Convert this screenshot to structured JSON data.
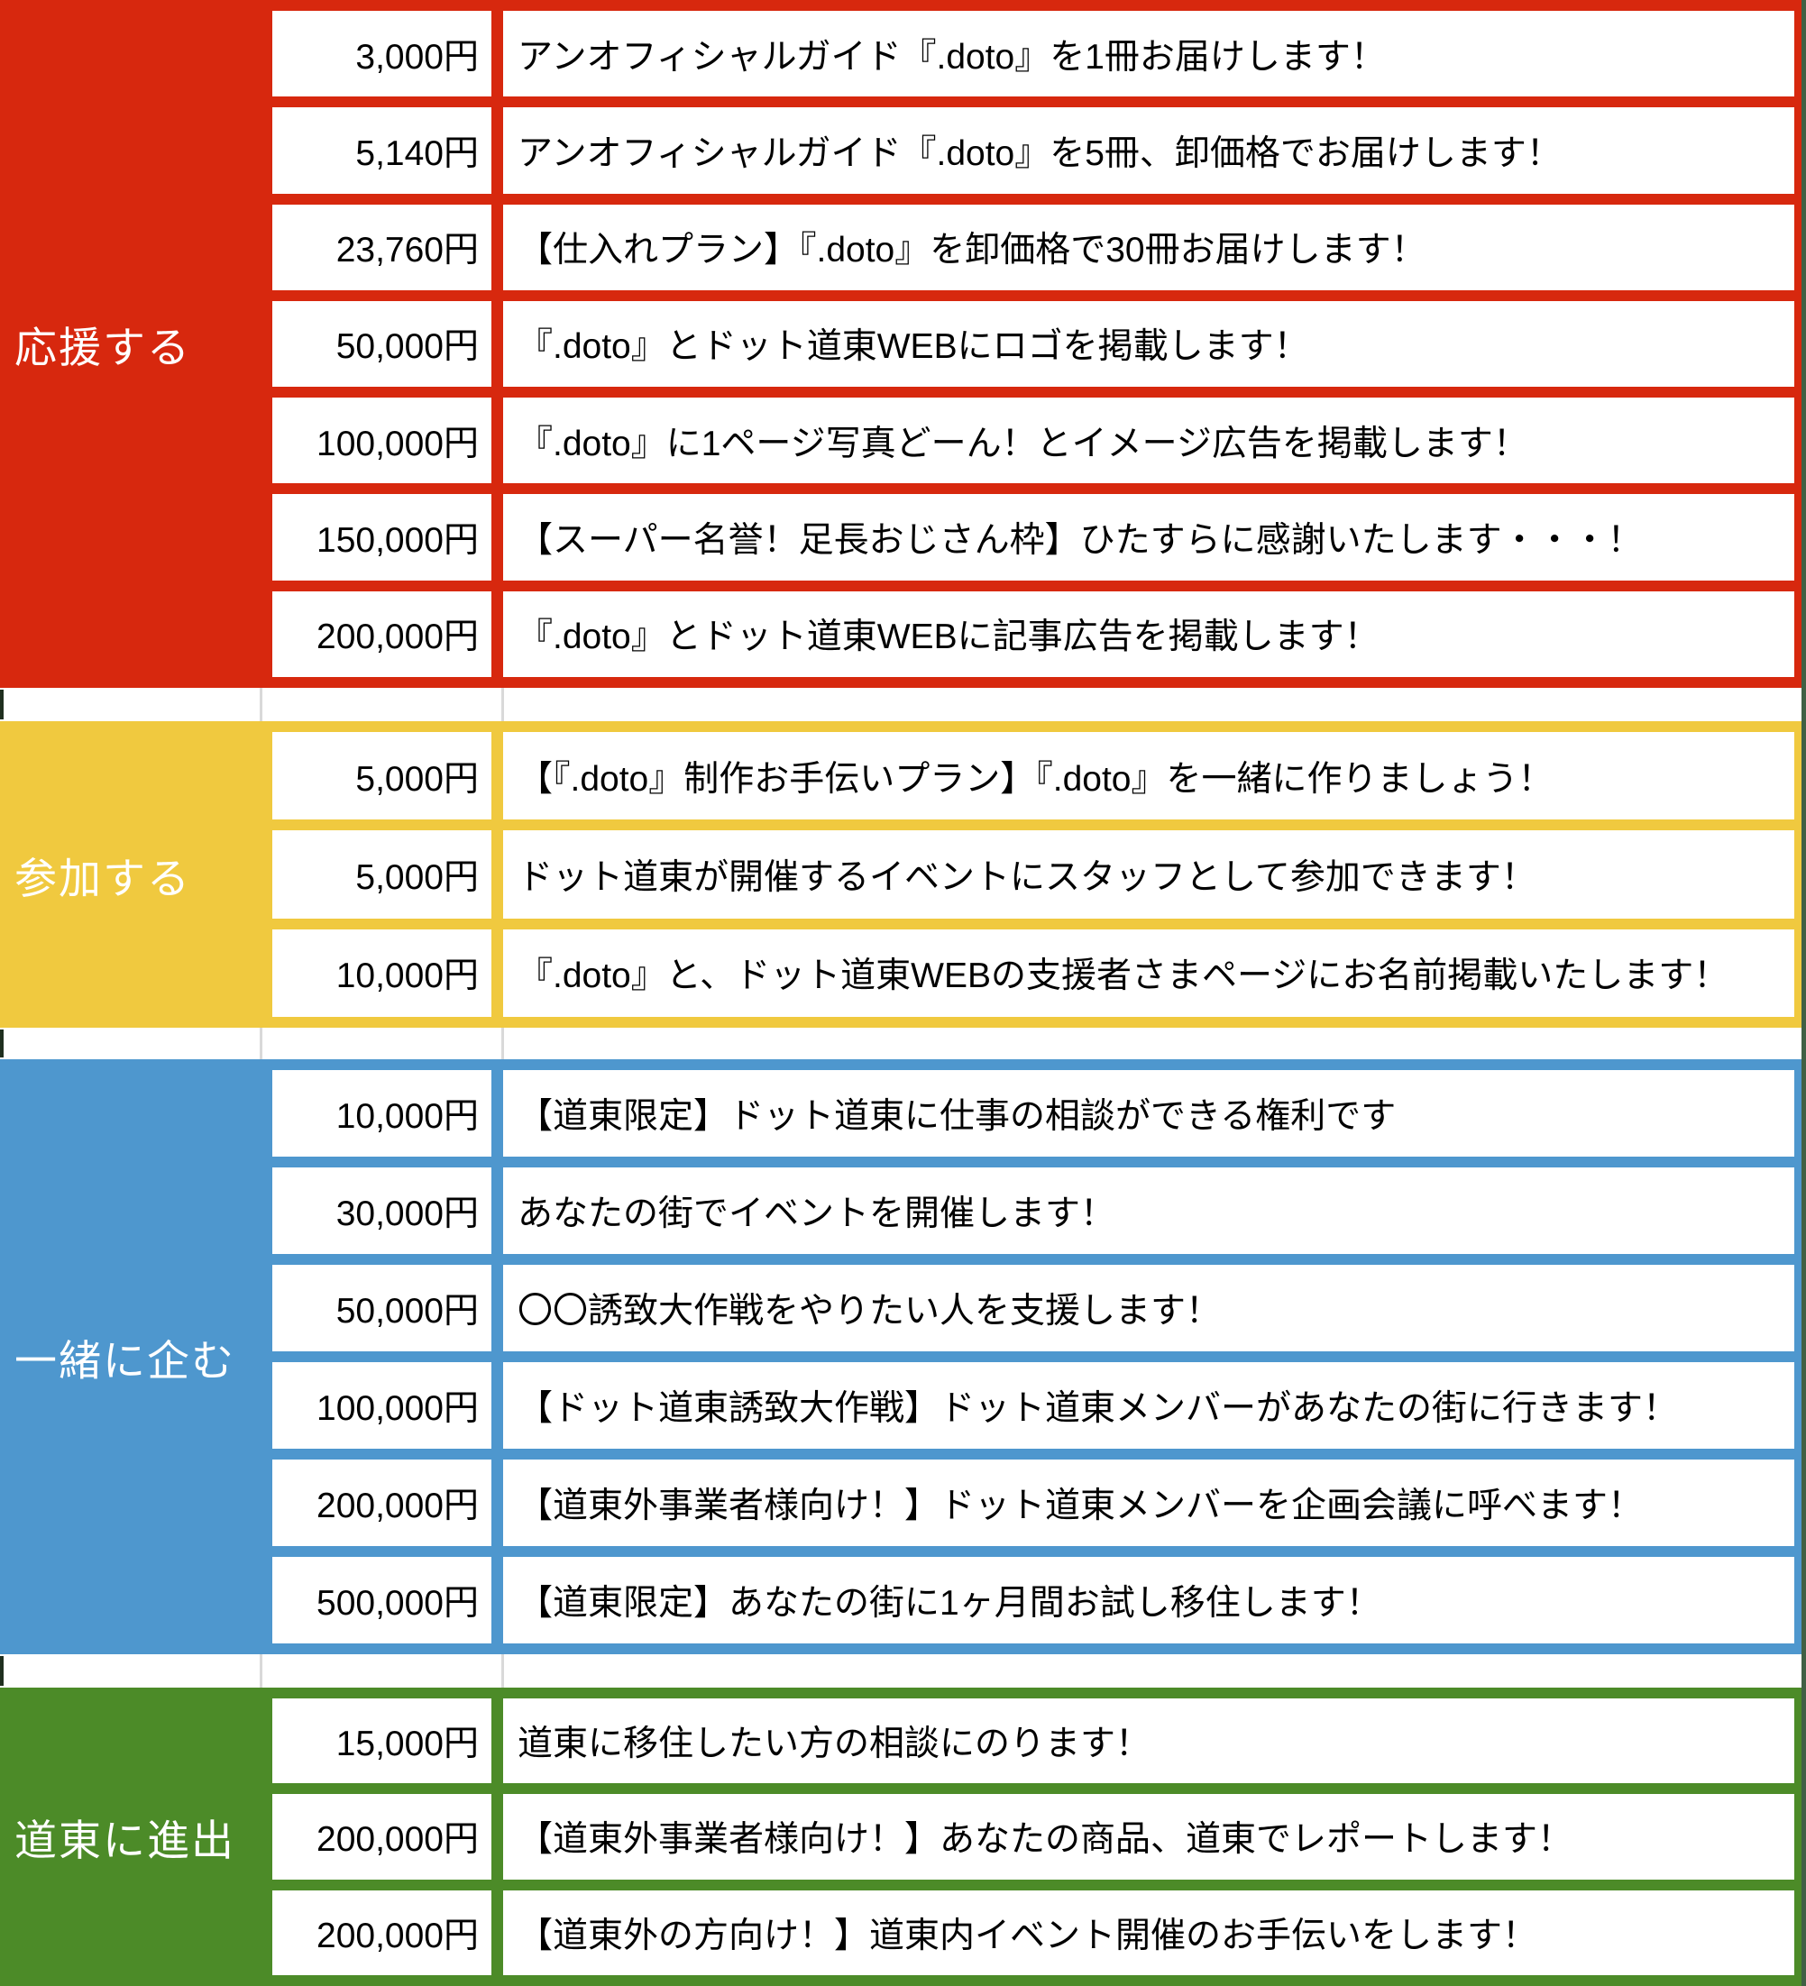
{
  "table": {
    "sections": [
      {
        "id": "support",
        "label": "応援する",
        "color": "#D7280E",
        "rows": [
          {
            "price": "3,000円",
            "desc": "アンオフィシャルガイド『.doto』を1冊お届けします！"
          },
          {
            "price": "5,140円",
            "desc": "アンオフィシャルガイド『.doto』を5冊、卸価格でお届けします！"
          },
          {
            "price": "23,760円",
            "desc": "【仕入れプラン】『.doto』を卸価格で30冊お届けします！"
          },
          {
            "price": "50,000円",
            "desc": "『.doto』とドット道東WEBにロゴを掲載します！"
          },
          {
            "price": "100,000円",
            "desc": "『.doto』に1ページ写真どーん！とイメージ広告を掲載します！"
          },
          {
            "price": "150,000円",
            "desc": "【スーパー名誉！足長おじさん枠】ひたすらに感謝いたします・・・！"
          },
          {
            "price": "200,000円",
            "desc": "『.doto』とドット道東WEBに記事広告を掲載します！"
          }
        ]
      },
      {
        "id": "participate",
        "label": "参加する",
        "color": "#F0C93F",
        "rows": [
          {
            "price": "5,000円",
            "desc": "【『.doto』制作お手伝いプラン】『.doto』を一緒に作りましょう！"
          },
          {
            "price": "5,000円",
            "desc": "ドット道東が開催するイベントにスタッフとして参加できます！"
          },
          {
            "price": "10,000円",
            "desc": "『.doto』と、ドット道東WEBの支援者さまページにお名前掲載いたします！"
          }
        ]
      },
      {
        "id": "plot",
        "label": "一緒に企む",
        "color": "#4E97CE",
        "rows": [
          {
            "price": "10,000円",
            "desc": "【道東限定】ドット道東に仕事の相談ができる権利です"
          },
          {
            "price": "30,000円",
            "desc": "あなたの街でイベントを開催します！"
          },
          {
            "price": "50,000円",
            "desc": "〇〇誘致大作戦をやりたい人を支援します！"
          },
          {
            "price": "100,000円",
            "desc": "【ドット道東誘致大作戦】ドット道東メンバーがあなたの街に行きます！"
          },
          {
            "price": "200,000円",
            "desc": "【道東外事業者様向け！】ドット道東メンバーを企画会議に呼べます！"
          },
          {
            "price": "500,000円",
            "desc": "【道東限定】あなたの街に1ヶ月間お試し移住します！"
          }
        ]
      },
      {
        "id": "expand",
        "label": "道東に進出",
        "color": "#4C8B28",
        "rows": [
          {
            "price": "15,000円",
            "desc": "道東に移住したい方の相談にのります！"
          },
          {
            "price": "200,000円",
            "desc": "【道東外事業者様向け！】あなたの商品、道東でレポートします！"
          },
          {
            "price": "200,000円",
            "desc": "【道東外の方向け！】道東内イベント開催のお手伝いをします！"
          }
        ]
      }
    ]
  },
  "colors": {
    "support_red": "#D7280E",
    "participate_yellow": "#F0C93F",
    "plot_blue": "#4E97CE",
    "expand_green": "#4C8B28",
    "separator_line": "#D9D9D9",
    "edge_strip": "#406044",
    "cell_background": "#FFFFFF",
    "label_text": "#FFFFFF",
    "cell_text": "#000000"
  }
}
